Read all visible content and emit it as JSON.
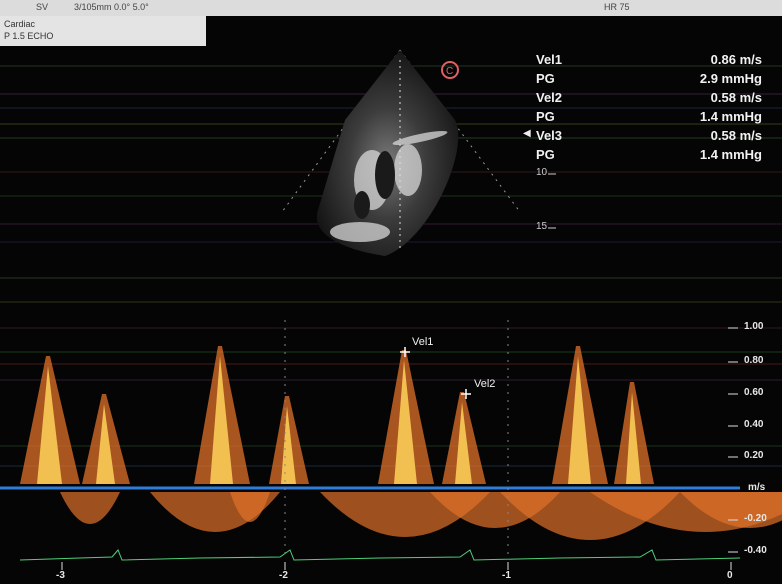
{
  "header": {
    "left": "SV",
    "sweep": "3/105mm 0.0° 5.0°",
    "center": "",
    "right": "HR 75"
  },
  "info_box": {
    "line1": "Cardiac",
    "line2": "P 1.5 ECHO"
  },
  "measurements": [
    {
      "label": "Vel1",
      "value": "0.86 m/s"
    },
    {
      "label": "PG",
      "value": "2.9 mmHg"
    },
    {
      "label": "Vel2",
      "value": "0.58 m/s"
    },
    {
      "label": "PG",
      "value": "1.4 mmHg"
    },
    {
      "label": "Vel3",
      "value": "0.58 m/s"
    },
    {
      "label": "PG",
      "value": "1.4 mmHg"
    }
  ],
  "depth_marks": [
    "10",
    "15"
  ],
  "orientation_marker": "C",
  "doppler": {
    "y_ticks": [
      "1.00",
      "0.80",
      "0.60",
      "0.40",
      "0.20",
      "m/s",
      "-0.20",
      "-0.40"
    ],
    "x_ticks": [
      "-3",
      "-2",
      "-1",
      "0"
    ],
    "annotations": [
      "Vel1",
      "Vel2"
    ]
  },
  "colors": {
    "spectral_core": "#ffd25a",
    "spectral_edge": "#e0702a",
    "baseline": "#2e7dd8",
    "ecg": "#4fd07a"
  }
}
